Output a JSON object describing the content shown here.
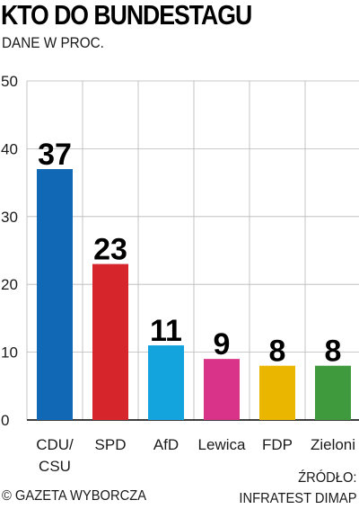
{
  "header": {
    "title": "KTO DO BUNDESTAGU",
    "subtitle": "DANE W PROC."
  },
  "chart_data": {
    "type": "bar",
    "title": "KTO DO BUNDESTAGU",
    "subtitle": "DANE W PROC.",
    "categories": [
      [
        "CDU/",
        "CSU"
      ],
      [
        "SPD"
      ],
      [
        "AfD"
      ],
      [
        "Lewica"
      ],
      [
        "FDP"
      ],
      [
        "Zieloni"
      ]
    ],
    "values": [
      37,
      23,
      11,
      9,
      8,
      8
    ],
    "colors": [
      "#1168b5",
      "#d7262b",
      "#13a4dd",
      "#d93289",
      "#eab600",
      "#3e9a3c"
    ],
    "ylim": [
      0,
      50
    ],
    "yticks": [
      0,
      10,
      20,
      30,
      40,
      50
    ],
    "grid": true,
    "xlabel": "",
    "ylabel": ""
  },
  "footer": {
    "copyright": "© GAZETA WYBORCZA",
    "source_line1": "ŹRÓDŁO:",
    "source_line2": "INFRATEST DIMAP"
  }
}
